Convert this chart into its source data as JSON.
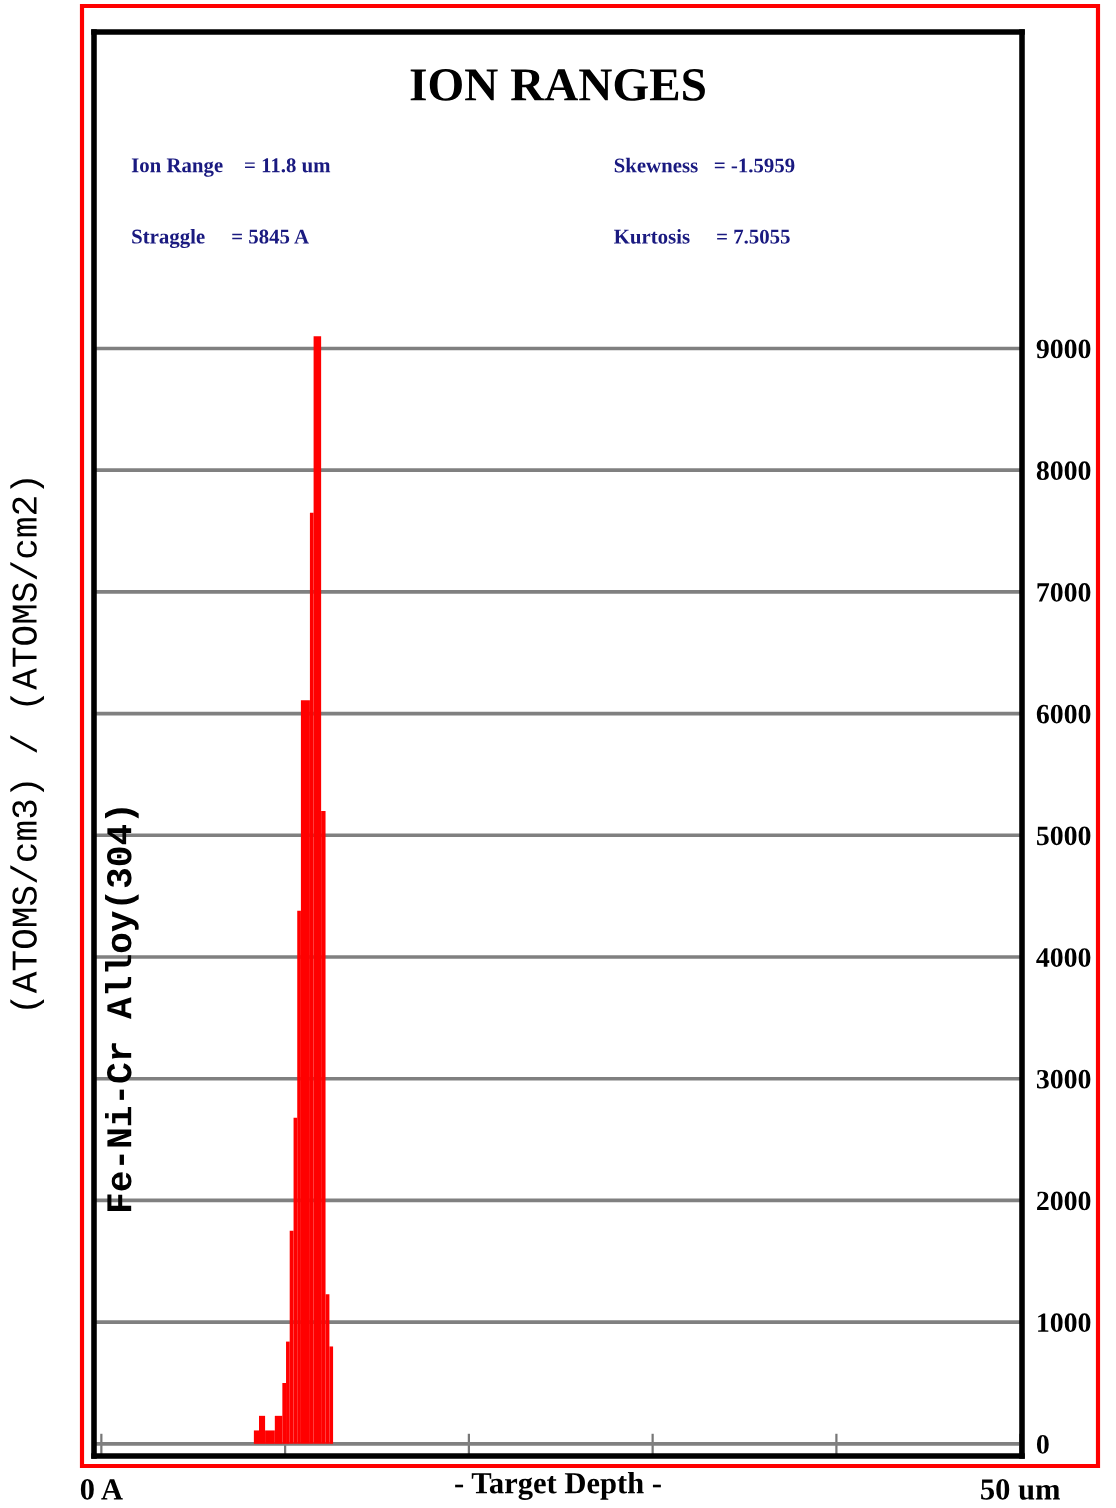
{
  "chart_data": {
    "type": "histogram",
    "title": "ION RANGES",
    "xlabel": "- Target Depth -",
    "ylabel": "(ATOMS/cm3) / (ATOMS/cm2)",
    "annotations": [
      "Ion Range    = 11.8 um",
      "Straggle     = 5845 A",
      "Skewness   = -1.5959",
      "Kurtosis     = 7.5055",
      "Fe-Ni-Cr Alloy(304)"
    ],
    "bins": [
      8.3,
      8.58,
      8.91,
      9.44,
      9.85,
      10.05,
      10.25,
      10.46,
      10.66,
      10.86,
      11.35,
      11.55,
      11.96,
      12.2,
      12.41,
      12.61
    ],
    "values": [
      110,
      230,
      110,
      230,
      500,
      840,
      1750,
      2680,
      4380,
      6110,
      7650,
      9100,
      5200,
      1230,
      800
    ],
    "color": "#ff0000",
    "xlim": [
      -0.4,
      50.1
    ],
    "xticks": [
      {
        "value": 0,
        "label": "0 A"
      },
      {
        "value": 10,
        "label": null
      },
      {
        "value": 20,
        "label": null
      },
      {
        "value": 30,
        "label": null
      },
      {
        "value": 40,
        "label": null
      },
      {
        "value": 50,
        "label": "50 um"
      }
    ],
    "ylim": [
      -100,
      11600
    ],
    "yticks": [
      0,
      1000,
      2000,
      3000,
      4000,
      5000,
      6000,
      7000,
      8000,
      9000
    ],
    "grid": "y"
  }
}
